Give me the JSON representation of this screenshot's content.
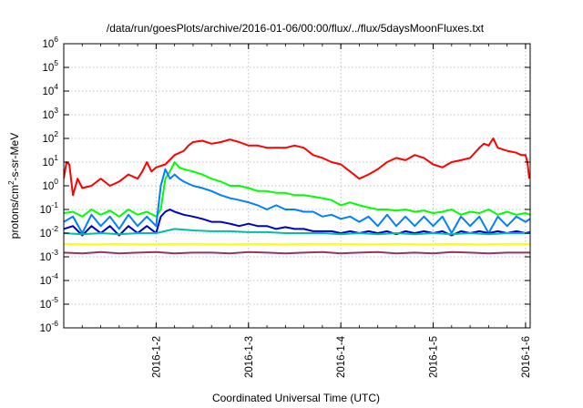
{
  "chart_data": {
    "type": "line",
    "title": "/data/run/goesPlots/archive/2016-01-06/00:00/flux/../flux/5daysMoonFluxes.txt",
    "xlabel": "Coordinated Universal Time (UTC)",
    "ylabel_parts": [
      "protons/cm",
      "2",
      "-s-sr-MeV"
    ],
    "y_scale": "log",
    "ylim": [
      1e-06,
      1000000.0
    ],
    "xlim": [
      1.0,
      6.05
    ],
    "x_ticks": [
      {
        "x": 2,
        "label": "2016-1-2"
      },
      {
        "x": 3,
        "label": "2016-1-3"
      },
      {
        "x": 4,
        "label": "2016-1-4"
      },
      {
        "x": 5,
        "label": "2016-1-5"
      },
      {
        "x": 6,
        "label": "2016-1-6"
      }
    ],
    "y_ticks": [
      {
        "exp": 6,
        "base": "10",
        "sup": "6"
      },
      {
        "exp": 5,
        "base": "10",
        "sup": "5"
      },
      {
        "exp": 4,
        "base": "10",
        "sup": "4"
      },
      {
        "exp": 3,
        "base": "10",
        "sup": "3"
      },
      {
        "exp": 2,
        "base": "10",
        "sup": "2"
      },
      {
        "exp": 1,
        "base": "10",
        "sup": "1"
      },
      {
        "exp": 0,
        "base": "10",
        "sup": "0"
      },
      {
        "exp": -1,
        "base": "10",
        "sup": "-1"
      },
      {
        "exp": -2,
        "base": "10",
        "sup": "-2"
      },
      {
        "exp": -3,
        "base": "10",
        "sup": "-3"
      },
      {
        "exp": -4,
        "base": "10",
        "sup": "-4"
      },
      {
        "exp": -5,
        "base": "10",
        "sup": "-5"
      },
      {
        "exp": -6,
        "base": "10",
        "sup": "-6"
      }
    ],
    "grid": true,
    "series": [
      {
        "color": "#ff0000",
        "points": [
          [
            1.0,
            2
          ],
          [
            1.03,
            10
          ],
          [
            1.06,
            8
          ],
          [
            1.1,
            0.4
          ],
          [
            1.15,
            2
          ],
          [
            1.2,
            0.8
          ],
          [
            1.3,
            1
          ],
          [
            1.4,
            2
          ],
          [
            1.5,
            1
          ],
          [
            1.6,
            1.5
          ],
          [
            1.7,
            3
          ],
          [
            1.8,
            2
          ],
          [
            1.85,
            4
          ],
          [
            1.9,
            10
          ],
          [
            1.95,
            4
          ],
          [
            2.0,
            6
          ],
          [
            2.1,
            8
          ],
          [
            2.2,
            20
          ],
          [
            2.3,
            30
          ],
          [
            2.35,
            50
          ],
          [
            2.4,
            70
          ],
          [
            2.5,
            80
          ],
          [
            2.6,
            60
          ],
          [
            2.7,
            70
          ],
          [
            2.8,
            90
          ],
          [
            2.9,
            70
          ],
          [
            3.0,
            50
          ],
          [
            3.1,
            50
          ],
          [
            3.2,
            40
          ],
          [
            3.4,
            40
          ],
          [
            3.5,
            50
          ],
          [
            3.6,
            40
          ],
          [
            3.7,
            20
          ],
          [
            3.8,
            15
          ],
          [
            3.9,
            10
          ],
          [
            4.0,
            8
          ],
          [
            4.1,
            4
          ],
          [
            4.2,
            2
          ],
          [
            4.3,
            3
          ],
          [
            4.4,
            5
          ],
          [
            4.5,
            10
          ],
          [
            4.6,
            15
          ],
          [
            4.7,
            12
          ],
          [
            4.8,
            20
          ],
          [
            4.9,
            15
          ],
          [
            5.0,
            8
          ],
          [
            5.1,
            6
          ],
          [
            5.2,
            10
          ],
          [
            5.3,
            12
          ],
          [
            5.4,
            15
          ],
          [
            5.5,
            40
          ],
          [
            5.55,
            60
          ],
          [
            5.6,
            50
          ],
          [
            5.65,
            100
          ],
          [
            5.7,
            40
          ],
          [
            5.8,
            30
          ],
          [
            5.9,
            25
          ],
          [
            5.95,
            20
          ],
          [
            6.0,
            20
          ],
          [
            6.02,
            10
          ],
          [
            6.04,
            2
          ]
        ]
      },
      {
        "color": "#00ff00",
        "points": [
          [
            1.0,
            0.07
          ],
          [
            1.1,
            0.08
          ],
          [
            1.2,
            0.05
          ],
          [
            1.3,
            0.1
          ],
          [
            1.4,
            0.06
          ],
          [
            1.5,
            0.09
          ],
          [
            1.6,
            0.05
          ],
          [
            1.7,
            0.1
          ],
          [
            1.8,
            0.06
          ],
          [
            1.9,
            0.08
          ],
          [
            2.0,
            0.05
          ],
          [
            2.05,
            0.1
          ],
          [
            2.1,
            2
          ],
          [
            2.15,
            4
          ],
          [
            2.2,
            10
          ],
          [
            2.25,
            6
          ],
          [
            2.3,
            5
          ],
          [
            2.4,
            4
          ],
          [
            2.5,
            3
          ],
          [
            2.6,
            2
          ],
          [
            2.7,
            1.5
          ],
          [
            2.8,
            1
          ],
          [
            2.9,
            1
          ],
          [
            3.0,
            0.8
          ],
          [
            3.1,
            0.6
          ],
          [
            3.2,
            0.6
          ],
          [
            3.3,
            0.5
          ],
          [
            3.4,
            0.5
          ],
          [
            3.5,
            0.4
          ],
          [
            3.6,
            0.4
          ],
          [
            3.7,
            0.35
          ],
          [
            3.8,
            0.3
          ],
          [
            3.9,
            0.25
          ],
          [
            4.0,
            0.15
          ],
          [
            4.1,
            0.2
          ],
          [
            4.2,
            0.15
          ],
          [
            4.3,
            0.12
          ],
          [
            4.4,
            0.1
          ],
          [
            4.5,
            0.1
          ],
          [
            4.6,
            0.09
          ],
          [
            4.7,
            0.1
          ],
          [
            4.8,
            0.08
          ],
          [
            4.9,
            0.09
          ],
          [
            5.0,
            0.07
          ],
          [
            5.1,
            0.08
          ],
          [
            5.2,
            0.1
          ],
          [
            5.3,
            0.06
          ],
          [
            5.4,
            0.08
          ],
          [
            5.5,
            0.07
          ],
          [
            5.6,
            0.1
          ],
          [
            5.7,
            0.06
          ],
          [
            5.8,
            0.08
          ],
          [
            5.9,
            0.06
          ],
          [
            6.0,
            0.07
          ],
          [
            6.05,
            0.06
          ]
        ]
      },
      {
        "color": "#0080ff",
        "points": [
          [
            1.0,
            0.03
          ],
          [
            1.1,
            0.05
          ],
          [
            1.2,
            0.01
          ],
          [
            1.3,
            0.06
          ],
          [
            1.4,
            0.02
          ],
          [
            1.5,
            0.05
          ],
          [
            1.6,
            0.015
          ],
          [
            1.7,
            0.06
          ],
          [
            1.8,
            0.02
          ],
          [
            1.9,
            0.05
          ],
          [
            2.0,
            0.02
          ],
          [
            2.05,
            1
          ],
          [
            2.1,
            5
          ],
          [
            2.15,
            2
          ],
          [
            2.2,
            3
          ],
          [
            2.25,
            2
          ],
          [
            2.3,
            1.5
          ],
          [
            2.4,
            1
          ],
          [
            2.5,
            0.8
          ],
          [
            2.6,
            0.6
          ],
          [
            2.7,
            0.4
          ],
          [
            2.8,
            0.3
          ],
          [
            2.9,
            0.25
          ],
          [
            3.0,
            0.2
          ],
          [
            3.1,
            0.15
          ],
          [
            3.2,
            0.1
          ],
          [
            3.3,
            0.15
          ],
          [
            3.4,
            0.1
          ],
          [
            3.5,
            0.1
          ],
          [
            3.6,
            0.08
          ],
          [
            3.7,
            0.08
          ],
          [
            3.8,
            0.05
          ],
          [
            3.9,
            0.06
          ],
          [
            4.0,
            0.04
          ],
          [
            4.1,
            0.05
          ],
          [
            4.2,
            0.03
          ],
          [
            4.3,
            0.05
          ],
          [
            4.4,
            0.02
          ],
          [
            4.5,
            0.06
          ],
          [
            4.6,
            0.02
          ],
          [
            4.7,
            0.05
          ],
          [
            4.8,
            0.02
          ],
          [
            4.9,
            0.05
          ],
          [
            5.0,
            0.02
          ],
          [
            5.1,
            0.05
          ],
          [
            5.2,
            0.01
          ],
          [
            5.3,
            0.05
          ],
          [
            5.4,
            0.02
          ],
          [
            5.5,
            0.05
          ],
          [
            5.6,
            0.01
          ],
          [
            5.7,
            0.05
          ],
          [
            5.8,
            0.02
          ],
          [
            5.9,
            0.05
          ],
          [
            6.0,
            0.03
          ],
          [
            6.05,
            0.04
          ]
        ]
      },
      {
        "color": "#0000cc",
        "points": [
          [
            1.0,
            0.015
          ],
          [
            1.1,
            0.02
          ],
          [
            1.2,
            0.008
          ],
          [
            1.3,
            0.02
          ],
          [
            1.4,
            0.01
          ],
          [
            1.5,
            0.02
          ],
          [
            1.6,
            0.008
          ],
          [
            1.7,
            0.02
          ],
          [
            1.8,
            0.01
          ],
          [
            1.9,
            0.02
          ],
          [
            2.0,
            0.01
          ],
          [
            2.05,
            0.05
          ],
          [
            2.1,
            0.08
          ],
          [
            2.15,
            0.1
          ],
          [
            2.2,
            0.08
          ],
          [
            2.3,
            0.06
          ],
          [
            2.4,
            0.05
          ],
          [
            2.5,
            0.04
          ],
          [
            2.6,
            0.03
          ],
          [
            2.7,
            0.03
          ],
          [
            2.8,
            0.025
          ],
          [
            2.9,
            0.02
          ],
          [
            3.0,
            0.025
          ],
          [
            3.1,
            0.02
          ],
          [
            3.2,
            0.02
          ],
          [
            3.3,
            0.015
          ],
          [
            3.4,
            0.018
          ],
          [
            3.5,
            0.015
          ],
          [
            3.6,
            0.015
          ],
          [
            3.7,
            0.012
          ],
          [
            3.8,
            0.012
          ],
          [
            3.9,
            0.012
          ],
          [
            4.0,
            0.01
          ],
          [
            4.1,
            0.012
          ],
          [
            4.2,
            0.01
          ],
          [
            4.3,
            0.012
          ],
          [
            4.4,
            0.01
          ],
          [
            4.5,
            0.012
          ],
          [
            4.6,
            0.009
          ],
          [
            4.7,
            0.012
          ],
          [
            4.8,
            0.01
          ],
          [
            4.9,
            0.012
          ],
          [
            5.0,
            0.01
          ],
          [
            5.1,
            0.012
          ],
          [
            5.2,
            0.008
          ],
          [
            5.3,
            0.012
          ],
          [
            5.4,
            0.01
          ],
          [
            5.5,
            0.012
          ],
          [
            5.6,
            0.01
          ],
          [
            5.7,
            0.012
          ],
          [
            5.8,
            0.01
          ],
          [
            5.9,
            0.012
          ],
          [
            6.0,
            0.01
          ],
          [
            6.05,
            0.011
          ]
        ]
      },
      {
        "color": "#00c0a0",
        "points": [
          [
            1.0,
            0.01
          ],
          [
            1.2,
            0.009
          ],
          [
            1.4,
            0.01
          ],
          [
            1.6,
            0.009
          ],
          [
            1.8,
            0.01
          ],
          [
            2.0,
            0.01
          ],
          [
            2.2,
            0.015
          ],
          [
            2.4,
            0.013
          ],
          [
            2.6,
            0.012
          ],
          [
            2.8,
            0.012
          ],
          [
            3.0,
            0.011
          ],
          [
            3.2,
            0.011
          ],
          [
            3.4,
            0.01
          ],
          [
            3.6,
            0.01
          ],
          [
            3.8,
            0.01
          ],
          [
            4.0,
            0.009
          ],
          [
            4.2,
            0.01
          ],
          [
            4.4,
            0.009
          ],
          [
            4.6,
            0.01
          ],
          [
            4.8,
            0.009
          ],
          [
            5.0,
            0.01
          ],
          [
            5.2,
            0.009
          ],
          [
            5.4,
            0.01
          ],
          [
            5.6,
            0.009
          ],
          [
            5.8,
            0.01
          ],
          [
            6.05,
            0.01
          ]
        ]
      },
      {
        "color": "#ffff00",
        "points": [
          [
            1.0,
            0.0035
          ],
          [
            1.3,
            0.0034
          ],
          [
            1.6,
            0.0035
          ],
          [
            1.9,
            0.0034
          ],
          [
            2.2,
            0.0035
          ],
          [
            2.5,
            0.0035
          ],
          [
            2.8,
            0.0034
          ],
          [
            3.1,
            0.0035
          ],
          [
            3.4,
            0.0034
          ],
          [
            3.7,
            0.0035
          ],
          [
            4.0,
            0.0035
          ],
          [
            4.3,
            0.0034
          ],
          [
            4.6,
            0.0035
          ],
          [
            4.9,
            0.0034
          ],
          [
            5.2,
            0.0035
          ],
          [
            5.5,
            0.0034
          ],
          [
            5.8,
            0.0035
          ],
          [
            6.05,
            0.0035
          ]
        ]
      },
      {
        "color": "#993366",
        "points": [
          [
            1.0,
            0.0015
          ],
          [
            1.2,
            0.0014
          ],
          [
            1.4,
            0.0016
          ],
          [
            1.6,
            0.0014
          ],
          [
            1.8,
            0.0015
          ],
          [
            2.0,
            0.0016
          ],
          [
            2.2,
            0.0014
          ],
          [
            2.4,
            0.0015
          ],
          [
            2.6,
            0.0015
          ],
          [
            2.8,
            0.0014
          ],
          [
            3.0,
            0.0016
          ],
          [
            3.2,
            0.0015
          ],
          [
            3.4,
            0.0014
          ],
          [
            3.6,
            0.0015
          ],
          [
            3.8,
            0.0016
          ],
          [
            4.0,
            0.0014
          ],
          [
            4.2,
            0.0015
          ],
          [
            4.4,
            0.0016
          ],
          [
            4.6,
            0.0014
          ],
          [
            4.8,
            0.0015
          ],
          [
            5.0,
            0.0014
          ],
          [
            5.2,
            0.0016
          ],
          [
            5.4,
            0.0015
          ],
          [
            5.6,
            0.0014
          ],
          [
            5.8,
            0.0015
          ],
          [
            6.05,
            0.0015
          ]
        ]
      }
    ]
  }
}
